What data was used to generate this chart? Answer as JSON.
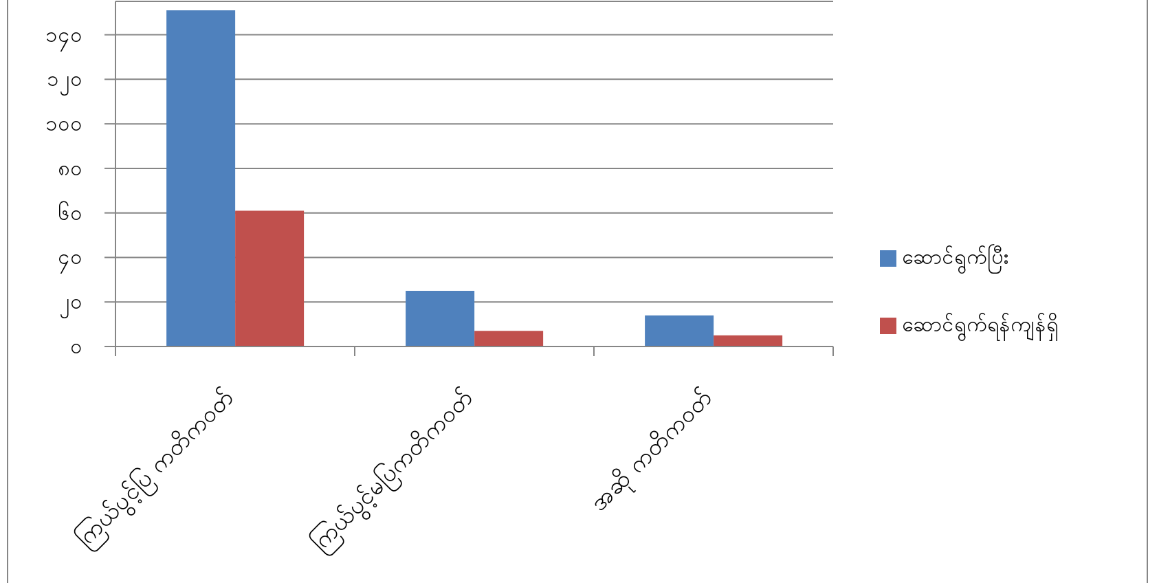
{
  "chart_data": {
    "type": "bar",
    "categories": [
      "ကြယ်ပွင့်ပြ ကတိကဝတ်",
      "ကြယ်ပွင့်မပြကတိကဝတ်",
      "အဆို ကတိကဝတ်"
    ],
    "series": [
      {
        "name": "ဆောင်ရွက်ပြီး",
        "color": "#4f81bd",
        "values": [
          151,
          25,
          14
        ]
      },
      {
        "name": "ဆောင်ရွက်ရန်ကျန်ရှိ",
        "color": "#c0504d",
        "values": [
          61,
          7,
          5
        ]
      }
    ],
    "ylim": [
      0,
      155
    ],
    "yticks": [
      {
        "value": 0,
        "label": "၀"
      },
      {
        "value": 20,
        "label": "၂၀"
      },
      {
        "value": 40,
        "label": "၄၀"
      },
      {
        "value": 60,
        "label": "၆၀"
      },
      {
        "value": 80,
        "label": "၈၀"
      },
      {
        "value": 100,
        "label": "၁၀၀"
      },
      {
        "value": 120,
        "label": "၁၂၀"
      },
      {
        "value": 140,
        "label": "၁၄၀"
      }
    ],
    "grid": "y",
    "legend": "right"
  }
}
